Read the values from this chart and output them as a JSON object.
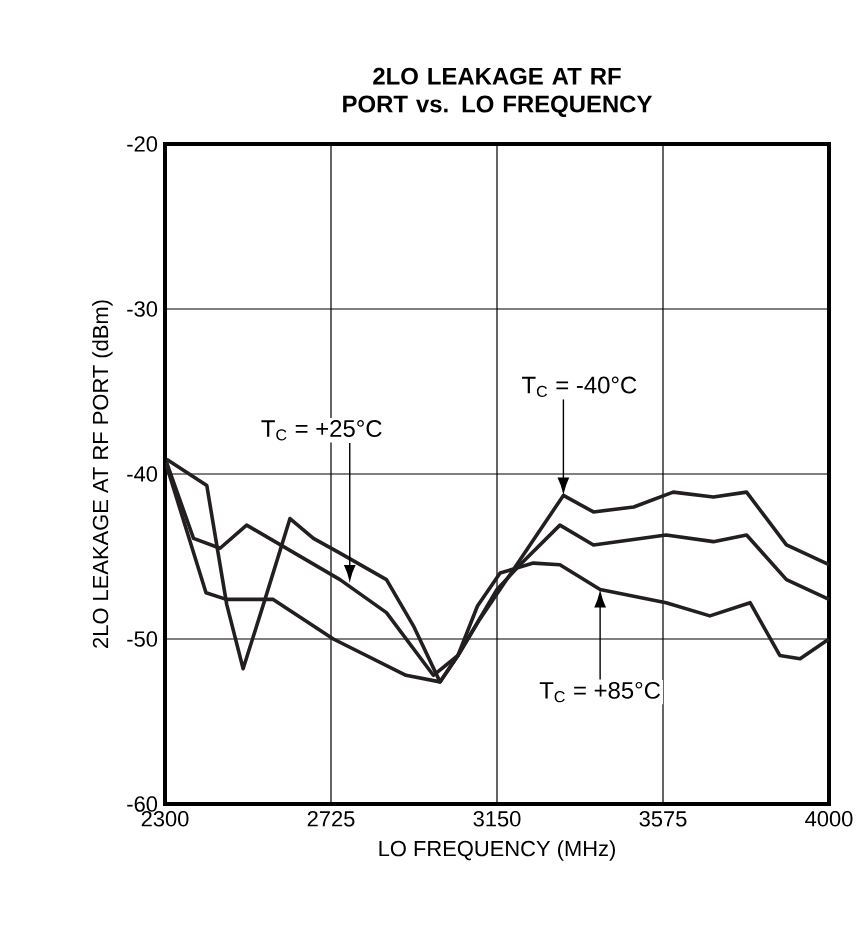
{
  "chart_data": {
    "type": "line",
    "title": "2LO LEAKAGE AT RF PORT vs. LO FREQUENCY",
    "xlabel": "LO FREQUENCY (MHz)",
    "ylabel": "2LO LEAKAGE AT RF PORT (dBm)",
    "xlim": [
      2300,
      4000
    ],
    "ylim": [
      -60,
      -20
    ],
    "xticks": [
      2300,
      2725,
      3150,
      3575,
      4000
    ],
    "yticks": [
      -60,
      -50,
      -40,
      -30,
      -20
    ],
    "grid": true,
    "legend": false,
    "line_style": "solid",
    "marker": "none",
    "series": [
      {
        "color": "#231f20",
        "x": [
          2304,
          2407,
          2458,
          2500,
          2552,
          2620,
          2680,
          2748,
          2867,
          2936,
          3004,
          3050,
          3106,
          3209,
          3320,
          3397,
          3500,
          3601,
          3704,
          3789,
          3891,
          4000
        ],
        "values": [
          -39.1,
          -40.7,
          -47.9,
          -51.8,
          -47.9,
          -42.7,
          -43.9,
          -44.8,
          -46.4,
          -49.2,
          -52.6,
          -51.0,
          -48.8,
          -45.2,
          -41.3,
          -42.3,
          -42.0,
          -41.1,
          -41.4,
          -41.1,
          -44.3,
          -45.5
        ]
      },
      {
        "color": "#231f20",
        "x": [
          2304,
          2373,
          2441,
          2509,
          2748,
          2867,
          2987,
          3050,
          3150,
          3209,
          3311,
          3397,
          3583,
          3704,
          3789,
          3891,
          4000
        ],
        "values": [
          -39.3,
          -43.9,
          -44.5,
          -43.1,
          -46.4,
          -48.4,
          -52.2,
          -51.0,
          -47.0,
          -45.5,
          -43.1,
          -44.3,
          -43.7,
          -44.1,
          -43.7,
          -46.4,
          -47.6
        ]
      },
      {
        "color": "#231f20",
        "x": [
          2304,
          2405,
          2457,
          2577,
          2731,
          2917,
          3004,
          3050,
          3100,
          3158,
          3243,
          3311,
          3414,
          3583,
          3695,
          3798,
          3874,
          3926,
          4000
        ],
        "values": [
          -39.5,
          -47.2,
          -47.6,
          -47.6,
          -50.0,
          -52.2,
          -52.6,
          -51.0,
          -48.0,
          -46.0,
          -45.4,
          -45.5,
          -47.0,
          -47.8,
          -48.6,
          -47.8,
          -51.0,
          -51.2,
          -50.0
        ]
      }
    ],
    "annotations": [
      {
        "text": "T$_{C}$ = -40°C",
        "x": 3320,
        "y": -41.3
      },
      {
        "text": "T$_{C}$ = +25°C",
        "x": 2773,
        "y": -46.6
      },
      {
        "text": "T$_{C}$ = +85°C",
        "x": 3414,
        "y": -47.0
      }
    ]
  }
}
